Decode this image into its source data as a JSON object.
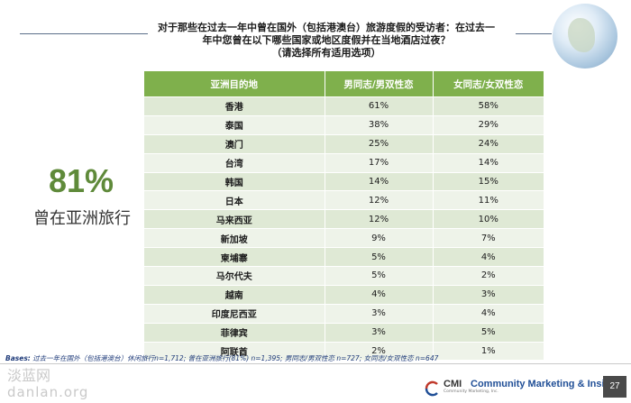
{
  "question": {
    "line1": "对于那些在过去一年中曾在国外（包括港澳台）旅游度假的受访者：在过去一",
    "line2": "年中您曾在以下哪些国家或地区度假并在当地酒店过夜？",
    "line3": "（请选择所有适用选项）"
  },
  "highlight": {
    "percent": "81%",
    "label": "曾在亚洲旅行"
  },
  "table": {
    "headers": [
      "亚洲目的地",
      "男同志/男双性恋",
      "女同志/女双性恋"
    ],
    "rows": [
      {
        "destination": "香港",
        "male": "61%",
        "female": "58%"
      },
      {
        "destination": "泰国",
        "male": "38%",
        "female": "29%"
      },
      {
        "destination": "澳门",
        "male": "25%",
        "female": "24%"
      },
      {
        "destination": "台湾",
        "male": "17%",
        "female": "14%"
      },
      {
        "destination": "韩国",
        "male": "14%",
        "female": "15%"
      },
      {
        "destination": "日本",
        "male": "12%",
        "female": "11%"
      },
      {
        "destination": "马来西亚",
        "male": "12%",
        "female": "10%"
      },
      {
        "destination": "新加坡",
        "male": "9%",
        "female": "7%"
      },
      {
        "destination": "柬埔寨",
        "male": "5%",
        "female": "4%"
      },
      {
        "destination": "马尔代夫",
        "male": "5%",
        "female": "2%"
      },
      {
        "destination": "越南",
        "male": "4%",
        "female": "3%"
      },
      {
        "destination": "印度尼西亚",
        "male": "3%",
        "female": "4%"
      },
      {
        "destination": "菲律宾",
        "male": "3%",
        "female": "5%"
      },
      {
        "destination": "阿联酋",
        "male": "2%",
        "female": "1%"
      }
    ]
  },
  "bases": {
    "prefix": "Bases:",
    "text": "过去一年在国外（包括港澳台）休闲旅行n=1,712; 曾在亚洲旅行(81%) n=1,395; 男同志/男双性恋 n=727; 女同志/女双性恋 n=647"
  },
  "watermark": {
    "line1": "淡蓝网",
    "line2": "danlan.org"
  },
  "logo": {
    "cmi": "CMI",
    "name": "Community Marketing & Insights",
    "sub": "Community Marketing, Inc."
  },
  "page_number": "27",
  "colors": {
    "accent_green": "#7fb04c",
    "percent_green": "#5f8a3a",
    "row_light": "#eef3e9",
    "row_dark": "#dfe9d5",
    "bases_blue": "#1f3b7a"
  },
  "icons": [
    "globe-icon",
    "cmi-logo-icon"
  ]
}
